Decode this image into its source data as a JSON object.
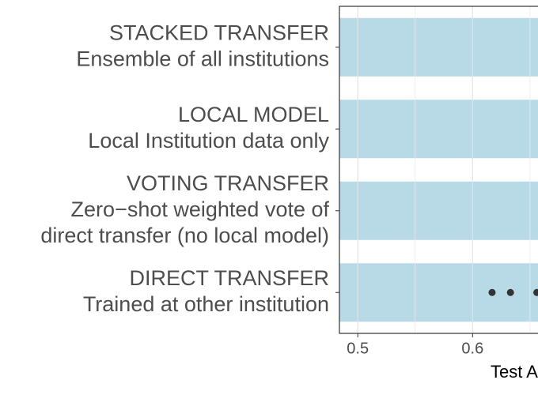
{
  "chart_data": {
    "type": "dotplot",
    "x_label": "Test A",
    "categories": [
      "STACKED TRANSFER",
      "LOCAL MODEL",
      "VOTING TRANSFER",
      "DIRECT TRANSFER"
    ],
    "descriptions": [
      [
        "Ensemble of all institutions"
      ],
      [
        "Local Institution data only"
      ],
      [
        "Zero−shot weighted vote of",
        "direct transfer (no local model)"
      ],
      [
        "Trained at other institution"
      ]
    ],
    "points": [
      {
        "category": "DIRECT TRANSFER",
        "x": [
          0.617,
          0.633,
          0.656
        ]
      }
    ],
    "point_color": "#333333",
    "band_color": "#b8dae6",
    "xlim": [
      0.484,
      0.657
    ],
    "xticks": [
      0.5,
      0.6
    ],
    "minor_xticks": [
      0.55,
      0.65
    ],
    "grid": true
  }
}
